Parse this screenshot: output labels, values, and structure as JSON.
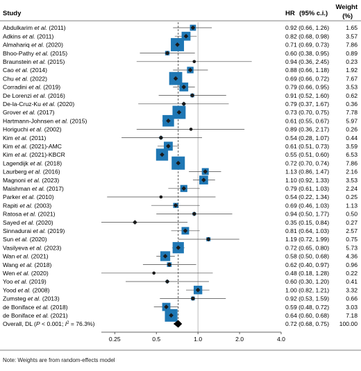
{
  "chart_data": {
    "type": "forest",
    "header": {
      "study": "Study",
      "hr": "HR",
      "ci": "(95% c.i.)",
      "weight_line1": "Weight",
      "weight_line2": "(%)"
    },
    "xscale": "log",
    "xlim": [
      0.2,
      4.0
    ],
    "xticks": [
      0.25,
      0.5,
      1.0,
      2.0,
      4.0
    ],
    "xtick_labels": [
      "0.25",
      "0.5",
      "1.0",
      "2.0",
      "4.0"
    ],
    "reference_line": 1.0,
    "overall_line": 0.72,
    "colors": {
      "box": "#1f77b4",
      "point": "#1a1a1a",
      "line": "#444444",
      "grid": "#aaaaaa"
    },
    "studies": [
      {
        "prefix": "Abdulkarim ",
        "etal": "et al.",
        "suffix": " (2011)",
        "hr": 0.92,
        "lo": 0.66,
        "hi": 1.26,
        "hr_text": "0.92 (0.66, 1.26)",
        "weight": 1.65,
        "weight_text": "1.65"
      },
      {
        "prefix": "Adkins ",
        "etal": "et al.",
        "suffix": " (2011)",
        "hr": 0.82,
        "lo": 0.68,
        "hi": 0.98,
        "hr_text": "0.82 (0.68, 0.98)",
        "weight": 3.57,
        "weight_text": "3.57"
      },
      {
        "prefix": "Almahariq ",
        "etal": "et al.",
        "suffix": " (2020)",
        "hr": 0.71,
        "lo": 0.69,
        "hi": 0.73,
        "hr_text": "0.71 (0.69, 0.73)",
        "weight": 7.86,
        "weight_text": "7.86"
      },
      {
        "prefix": "Bhoo-Pathy ",
        "etal": "et al.",
        "suffix": " (2015)",
        "hr": 0.6,
        "lo": 0.38,
        "hi": 0.95,
        "hr_text": "0.60 (0.38, 0.95)",
        "weight": 0.89,
        "weight_text": "0.89"
      },
      {
        "prefix": "Braunstein ",
        "etal": "et al.",
        "suffix": " (2015)",
        "hr": 0.94,
        "lo": 0.36,
        "hi": 2.45,
        "hr_text": "0.94 (0.36, 2.45)",
        "weight": 0.23,
        "weight_text": "0.23"
      },
      {
        "prefix": "Cao ",
        "etal": "et al.",
        "suffix": " (2014)",
        "hr": 0.88,
        "lo": 0.66,
        "hi": 1.18,
        "hr_text": "0.88 (0.66, 1.18)",
        "weight": 1.92,
        "weight_text": "1.92"
      },
      {
        "prefix": "Chu ",
        "etal": "et al.",
        "suffix": " (2022)",
        "hr": 0.69,
        "lo": 0.66,
        "hi": 0.72,
        "hr_text": "0.69 (0.66, 0.72)",
        "weight": 7.67,
        "weight_text": "7.67"
      },
      {
        "prefix": "Corradini ",
        "etal": "et al.",
        "suffix": " (2019)",
        "hr": 0.79,
        "lo": 0.66,
        "hi": 0.95,
        "hr_text": "0.79 (0.66, 0.95)",
        "weight": 3.53,
        "weight_text": "3.53"
      },
      {
        "prefix": "De Lorenzi ",
        "etal": "et al.",
        "suffix": " (2016)",
        "hr": 0.91,
        "lo": 0.52,
        "hi": 1.6,
        "hr_text": "0.91 (0.52, 1.60)",
        "weight": 0.62,
        "weight_text": "0.62"
      },
      {
        "prefix": "De-la-Cruz-Ku ",
        "etal": "et al.",
        "suffix": " (2020)",
        "hr": 0.79,
        "lo": 0.37,
        "hi": 1.67,
        "hr_text": "0.79 (0.37, 1.67)",
        "weight": 0.36,
        "weight_text": "0.36"
      },
      {
        "prefix": "Grover ",
        "etal": "et al.",
        "suffix": " (2017)",
        "hr": 0.73,
        "lo": 0.7,
        "hi": 0.75,
        "hr_text": "0.73 (0.70, 0.75)",
        "weight": 7.78,
        "weight_text": "7.78"
      },
      {
        "prefix": "Hartmann-Johnsen ",
        "etal": "et al.",
        "suffix": " (2015)",
        "hr": 0.61,
        "lo": 0.55,
        "hi": 0.67,
        "hr_text": "0.61 (0.55, 0.67)",
        "weight": 5.97,
        "weight_text": "5.97"
      },
      {
        "prefix": "Horiguchi ",
        "etal": "et al.",
        "suffix": " (2002)",
        "hr": 0.89,
        "lo": 0.36,
        "hi": 2.17,
        "hr_text": "0.89 (0.36, 2.17)",
        "weight": 0.26,
        "weight_text": "0.26"
      },
      {
        "prefix": "Kim ",
        "etal": "et al.",
        "suffix": " (2011)",
        "hr": 0.54,
        "lo": 0.28,
        "hi": 1.07,
        "hr_text": "0.54 (0.28, 1.07)",
        "weight": 0.44,
        "weight_text": "0.44"
      },
      {
        "prefix": "Kim ",
        "etal": "et al.",
        "suffix": " (2021)-AMC",
        "hr": 0.61,
        "lo": 0.51,
        "hi": 0.73,
        "hr_text": "0.61 (0.51, 0.73)",
        "weight": 3.59,
        "weight_text": "3.59"
      },
      {
        "prefix": "Kim ",
        "etal": "et al.",
        "suffix": " (2021)-KBCR",
        "hr": 0.55,
        "lo": 0.51,
        "hi": 0.6,
        "hr_text": "0.55 (0.51, 0.60)",
        "weight": 6.53,
        "weight_text": "6.53"
      },
      {
        "prefix": "Lagendijk ",
        "etal": "et al.",
        "suffix": " (2018)",
        "hr": 0.72,
        "lo": 0.7,
        "hi": 0.74,
        "hr_text": "0.72 (0.70, 0.74)",
        "weight": 7.86,
        "weight_text": "7.86"
      },
      {
        "prefix": "Laurberg ",
        "etal": "et al.",
        "suffix": " (2016)",
        "hr": 1.13,
        "lo": 0.86,
        "hi": 1.47,
        "hr_text": "1.13 (0.86, 1.47)",
        "weight": 2.16,
        "weight_text": "2.16"
      },
      {
        "prefix": "Magnoni ",
        "etal": "et al.",
        "suffix": " (2023)",
        "hr": 1.1,
        "lo": 0.92,
        "hi": 1.33,
        "hr_text": "1.10 (0.92, 1.33)",
        "weight": 3.53,
        "weight_text": "3.53"
      },
      {
        "prefix": "Maishman ",
        "etal": "et al.",
        "suffix": " (2017)",
        "hr": 0.79,
        "lo": 0.61,
        "hi": 1.03,
        "hr_text": "0.79 (0.61, 1.03)",
        "weight": 2.24,
        "weight_text": "2.24"
      },
      {
        "prefix": "Parker ",
        "etal": "et al.",
        "suffix": " (2010)",
        "hr": 0.54,
        "lo": 0.22,
        "hi": 1.34,
        "hr_text": "0.54 (0.22, 1.34)",
        "weight": 0.25,
        "weight_text": "0.25"
      },
      {
        "prefix": "Rapiti ",
        "etal": "et al.",
        "suffix": " (2003)",
        "hr": 0.69,
        "lo": 0.46,
        "hi": 1.03,
        "hr_text": "0.69 (0.46, 1.03)",
        "weight": 1.13,
        "weight_text": "1.13"
      },
      {
        "prefix": "Ratosa ",
        "etal": "et al.",
        "suffix": " (2021)",
        "hr": 0.94,
        "lo": 0.5,
        "hi": 1.77,
        "hr_text": "0.94 (0.50, 1.77)",
        "weight": 0.5,
        "weight_text": "0.50"
      },
      {
        "prefix": "Sayed ",
        "etal": "et al.",
        "suffix": " (2020)",
        "hr": 0.35,
        "lo": 0.15,
        "hi": 0.84,
        "hr_text": "0.35 (0.15, 0.84)",
        "weight": 0.27,
        "weight_text": "0.27"
      },
      {
        "prefix": "Sinnadurai ",
        "etal": "et al.",
        "suffix": " (2019)",
        "hr": 0.81,
        "lo": 0.64,
        "hi": 1.03,
        "hr_text": "0.81 (0.64, 1.03)",
        "weight": 2.57,
        "weight_text": "2.57"
      },
      {
        "prefix": "Sun ",
        "etal": "et al.",
        "suffix": " (2020)",
        "hr": 1.19,
        "lo": 0.72,
        "hi": 1.99,
        "hr_text": "1.19 (0.72, 1.99)",
        "weight": 0.75,
        "weight_text": "0.75"
      },
      {
        "prefix": "Vasilyeva ",
        "etal": "et al.",
        "suffix": " (2023)",
        "hr": 0.72,
        "lo": 0.65,
        "hi": 0.8,
        "hr_text": "0.72 (0.65, 0.80)",
        "weight": 5.73,
        "weight_text": "5.73"
      },
      {
        "prefix": "Wan ",
        "etal": "et al.",
        "suffix": " (2021)",
        "hr": 0.58,
        "lo": 0.5,
        "hi": 0.68,
        "hr_text": "0.58 (0.50, 0.68)",
        "weight": 4.36,
        "weight_text": "4.36"
      },
      {
        "prefix": "Wang ",
        "etal": "et al.",
        "suffix": " (2018)",
        "hr": 0.62,
        "lo": 0.4,
        "hi": 0.97,
        "hr_text": "0.62 (0.40, 0.97)",
        "weight": 0.96,
        "weight_text": "0.96"
      },
      {
        "prefix": "Wen ",
        "etal": "et al.",
        "suffix": " (2020)",
        "hr": 0.48,
        "lo": 0.18,
        "hi": 1.28,
        "hr_text": "0.48 (0.18, 1.28)",
        "weight": 0.22,
        "weight_text": "0.22"
      },
      {
        "prefix": "Yoo ",
        "etal": "et al.",
        "suffix": " (2019)",
        "hr": 0.6,
        "lo": 0.3,
        "hi": 1.2,
        "hr_text": "0.60 (0.30, 1.20)",
        "weight": 0.41,
        "weight_text": "0.41"
      },
      {
        "prefix": "Yood ",
        "etal": "et al.",
        "suffix": " (2008)",
        "hr": 1.0,
        "lo": 0.82,
        "hi": 1.21,
        "hr_text": "1.00 (0.82, 1.21)",
        "weight": 3.32,
        "weight_text": "3.32"
      },
      {
        "prefix": "Zumsteg ",
        "etal": "et al.",
        "suffix": " (2013)",
        "hr": 0.92,
        "lo": 0.53,
        "hi": 1.59,
        "hr_text": "0.92 (0.53, 1.59)",
        "weight": 0.66,
        "weight_text": "0.66"
      },
      {
        "prefix": "de Boniface ",
        "etal": "et al.",
        "suffix": " (2018)",
        "hr": 0.59,
        "lo": 0.48,
        "hi": 0.72,
        "hr_text": "0.59 (0.48, 0.72)",
        "weight": 3.03,
        "weight_text": "3.03"
      },
      {
        "prefix": "de Boniface ",
        "etal": "et al.",
        "suffix": " (2021)",
        "hr": 0.64,
        "lo": 0.6,
        "hi": 0.68,
        "hr_text": "0.64 (0.60, 0.68)",
        "weight": 7.18,
        "weight_text": "7.18"
      }
    ],
    "overall": {
      "label_prefix": "Overall, DL (",
      "p_symbol": "P",
      "p_text": " < 0.001; ",
      "i_symbol": "I",
      "sup": "2",
      "label_suffix": " = 76.3%)",
      "hr": 0.72,
      "lo": 0.68,
      "hi": 0.75,
      "hr_text": "0.72 (0.68, 0.75)",
      "weight_text": "100.00"
    },
    "note": "Note: Weights are from random-effects model"
  }
}
